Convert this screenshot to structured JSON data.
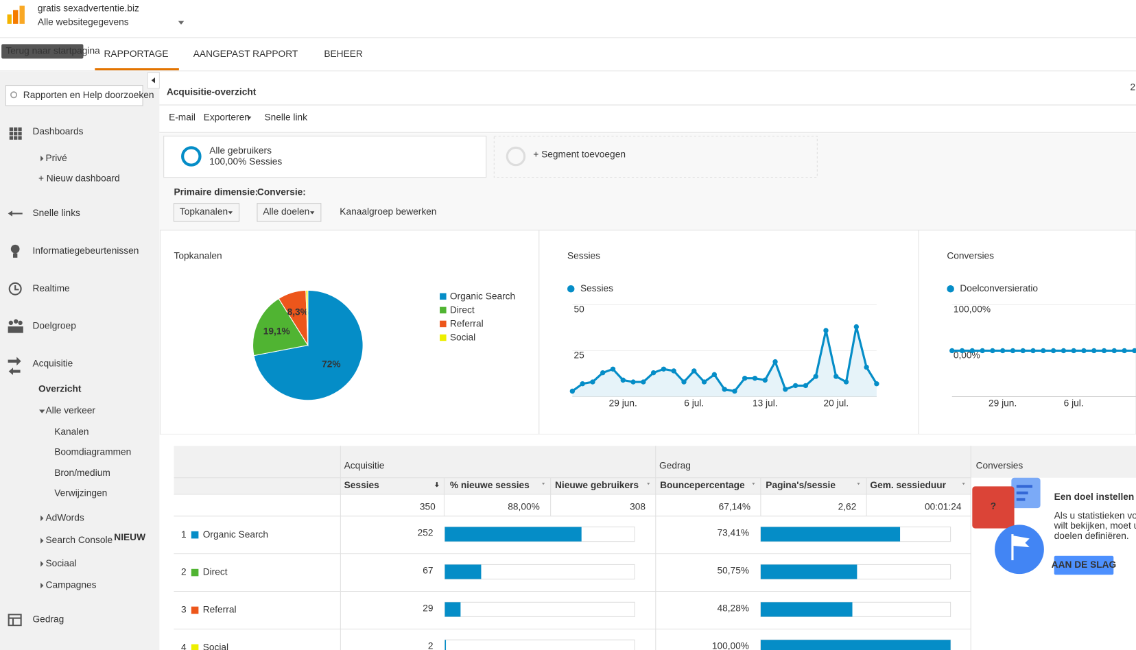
{
  "header": {
    "site": "gratis sexadvertentie.biz",
    "view": "Alle websitegegevens",
    "tooltip": "Terug naar startpagina",
    "corner": "2"
  },
  "nav": [
    "RAPPORTAGE",
    "AANGEPAST RAPPORT",
    "BEHEER"
  ],
  "search_placeholder": "Rapporten en Help doorzoeken",
  "sidebar": {
    "dashboards": "Dashboards",
    "prive": "Privé",
    "new_dashboard": "+ Nieuw dashboard",
    "shortcuts": "Snelle links",
    "intelligence": "Informatiegebeurtenissen",
    "realtime": "Realtime",
    "audience": "Doelgroep",
    "acquisition": "Acquisitie",
    "overview": "Overzicht",
    "all_traffic": "Alle verkeer",
    "sub": [
      "Kanalen",
      "Boomdiagrammen",
      "Bron/medium",
      "Verwijzingen"
    ],
    "more": [
      "AdWords",
      "Search Console",
      "Sociaal",
      "Campagnes"
    ],
    "new_badge": "NIEUW",
    "behavior": "Gedrag"
  },
  "page": {
    "title": "Acquisitie-overzicht",
    "actions": [
      "E-mail",
      "Exporteren",
      "Snelle link"
    ]
  },
  "segments": {
    "name": "Alle gebruikers",
    "detail": "100,00% Sessies",
    "add": "+ Segment toevoegen"
  },
  "dimension": {
    "primary_label": "Primaire dimensie:",
    "primary_value": "Topkanalen",
    "conversion_label": "Conversie:",
    "conversion_value": "Alle doelen",
    "edit": "Kanaalgroep bewerken"
  },
  "charts": [
    {
      "type": "pie",
      "title": "Topkanalen",
      "categories": [
        "Organic Search",
        "Direct",
        "Referral",
        "Social"
      ],
      "values": [
        72,
        19.1,
        8.3,
        0.6
      ],
      "value_labels": [
        "72%",
        "19,1%",
        "8,3%",
        null
      ],
      "colors": [
        "#058dc7",
        "#50b432",
        "#ed561b",
        "#edef00"
      ]
    },
    {
      "type": "line",
      "title": "Sessies",
      "categories": [
        null,
        null,
        null,
        null,
        null,
        "29 jun.",
        null,
        null,
        null,
        null,
        null,
        null,
        "6 jul.",
        null,
        null,
        null,
        null,
        null,
        null,
        "13 jul.",
        null,
        null,
        null,
        null,
        null,
        null,
        "20 jul.",
        null,
        null,
        null,
        null
      ],
      "series": [
        {
          "name": "Sessies",
          "color": "#058dc7",
          "values": [
            3,
            7,
            8,
            13,
            15,
            9,
            8,
            8,
            13,
            15,
            14,
            8,
            14,
            8,
            12,
            4,
            3,
            10,
            10,
            9,
            19,
            4,
            6,
            6,
            11,
            36,
            11,
            8,
            38,
            16,
            7
          ]
        }
      ],
      "ylim": [
        0,
        50
      ],
      "yticks": [
        25,
        50
      ]
    },
    {
      "type": "line",
      "title": "Conversies",
      "categories": [
        null,
        null,
        null,
        null,
        null,
        "29 jun.",
        null,
        null,
        null,
        null,
        null,
        null,
        "6 jul.",
        null,
        null,
        null,
        null,
        null,
        null
      ],
      "series": [
        {
          "name": "Doelconversieratio",
          "color": "#058dc7",
          "values": [
            0,
            0,
            0,
            0,
            0,
            0,
            0,
            0,
            0,
            0,
            0,
            0,
            0,
            0,
            0,
            0,
            0,
            0,
            0
          ]
        }
      ],
      "ylim": [
        -100,
        100
      ],
      "yticks": [
        {
          "value": 0,
          "label": "0,00%"
        },
        {
          "value": 100,
          "label": "100,00%"
        }
      ]
    }
  ],
  "table": {
    "groups": [
      "Acquisitie",
      "Gedrag",
      "Conversies"
    ],
    "columns": [
      "Sessies",
      "% nieuwe sessies",
      "Nieuwe gebruikers",
      "Bouncepercentage",
      "Pagina's/sessie",
      "Gem. sessieduur"
    ],
    "totals": {
      "sessions": 350,
      "new_pct": "88,00%",
      "new_users": 308,
      "bounce": "67,14%",
      "pages": "2,62",
      "duration": "00:01:24"
    },
    "rows": [
      {
        "rank": 1,
        "channel": "Organic Search",
        "color": "#058dc7",
        "sessions": 252,
        "bounce": 73.41,
        "bounce_label": "73,41%"
      },
      {
        "rank": 2,
        "channel": "Direct",
        "color": "#50b432",
        "sessions": 67,
        "bounce": 50.75,
        "bounce_label": "50,75%"
      },
      {
        "rank": 3,
        "channel": "Referral",
        "color": "#ed561b",
        "sessions": 29,
        "bounce": 48.28,
        "bounce_label": "48,28%"
      },
      {
        "rank": 4,
        "channel": "Social",
        "color": "#edef00",
        "sessions": 2,
        "bounce": 100,
        "bounce_label": "100,00%"
      }
    ]
  },
  "goal": {
    "title": "Een doel instellen",
    "lines": [
      "Als u statistieken voor",
      "wilt bekijken, moet u",
      "doelen definiëren."
    ],
    "button": "AAN DE SLAG"
  }
}
